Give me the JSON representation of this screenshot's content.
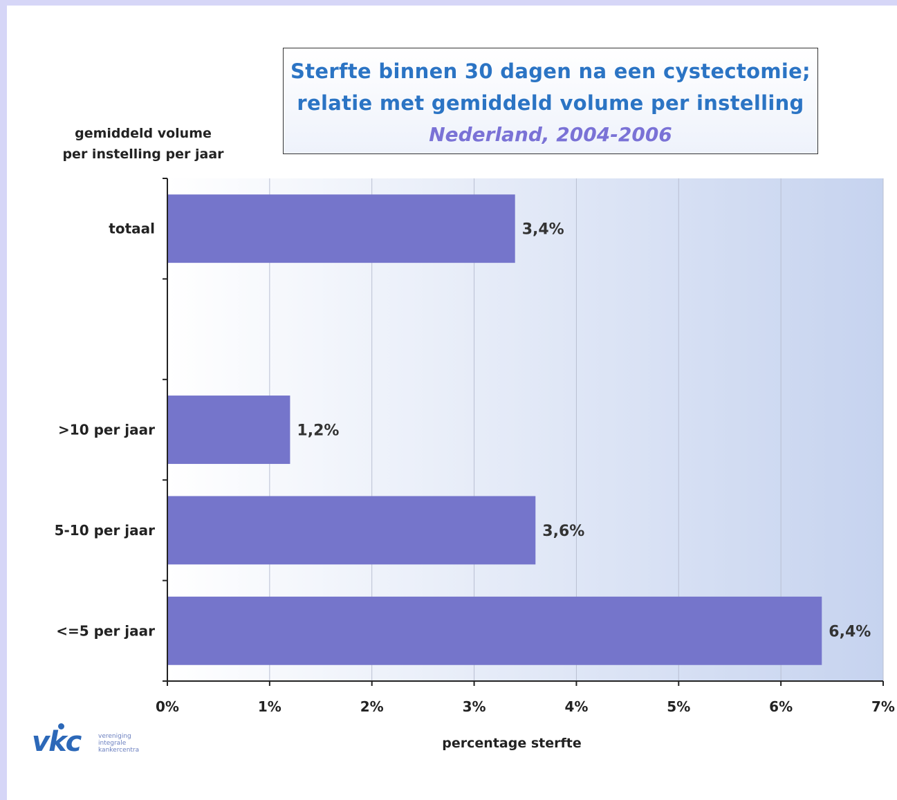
{
  "title": {
    "line1": "Sterfte binnen 30 dagen na een cystectomie;",
    "line2": "relatie met gemiddeld volume per instelling",
    "subtitle": "Nederland, 2004-2006"
  },
  "colors": {
    "bar": "#7575cb",
    "plot_bg_light": "#ffffff",
    "plot_bg_dark": "#c6d3ef",
    "title_color": "#2b74c4",
    "subtitle_color": "#7a72d6"
  },
  "logo": {
    "mark": "vkc",
    "text_lines": [
      "vereniging",
      "integrale",
      "kankercentra"
    ]
  },
  "chart_data": {
    "type": "bar",
    "orientation": "horizontal",
    "categories": [
      "totaal",
      "",
      ">10 per jaar",
      "5-10 per jaar",
      "<=5 per jaar"
    ],
    "values": [
      3.4,
      null,
      1.2,
      3.6,
      6.4
    ],
    "data_labels": [
      "3,4%",
      "",
      "1,2%",
      "3,6%",
      "6,4%"
    ],
    "xlabel": "percentage sterfte",
    "ylabel_lines": [
      "gemiddeld volume",
      "per instelling per jaar"
    ],
    "xlim": [
      0,
      7
    ],
    "xticks": [
      0,
      1,
      2,
      3,
      4,
      5,
      6,
      7
    ],
    "xtick_labels": [
      "0%",
      "1%",
      "2%",
      "3%",
      "4%",
      "5%",
      "6%",
      "7%"
    ],
    "grid": true,
    "legend": "none"
  }
}
